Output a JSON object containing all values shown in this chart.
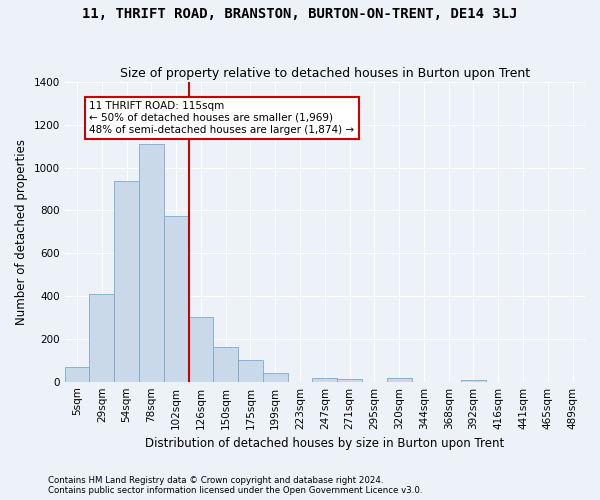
{
  "title": "11, THRIFT ROAD, BRANSTON, BURTON-ON-TRENT, DE14 3LJ",
  "subtitle": "Size of property relative to detached houses in Burton upon Trent",
  "xlabel": "Distribution of detached houses by size in Burton upon Trent",
  "ylabel": "Number of detached properties",
  "footnote1": "Contains HM Land Registry data © Crown copyright and database right 2024.",
  "footnote2": "Contains public sector information licensed under the Open Government Licence v3.0.",
  "annotation_line1": "11 THRIFT ROAD: 115sqm",
  "annotation_line2": "← 50% of detached houses are smaller (1,969)",
  "annotation_line3": "48% of semi-detached houses are larger (1,874) →",
  "bar_color": "#c9d9ea",
  "bar_edge_color": "#7aaaca",
  "vline_color": "#cc0000",
  "vline_position": 4.5,
  "annotation_box_edge": "#cc0000",
  "categories": [
    "5sqm",
    "29sqm",
    "54sqm",
    "78sqm",
    "102sqm",
    "126sqm",
    "150sqm",
    "175sqm",
    "199sqm",
    "223sqm",
    "247sqm",
    "271sqm",
    "295sqm",
    "320sqm",
    "344sqm",
    "368sqm",
    "392sqm",
    "416sqm",
    "441sqm",
    "465sqm",
    "489sqm"
  ],
  "values": [
    70,
    410,
    940,
    1110,
    775,
    300,
    160,
    100,
    42,
    0,
    18,
    12,
    0,
    15,
    0,
    0,
    10,
    0,
    0,
    0,
    0
  ],
  "ylim": [
    0,
    1400
  ],
  "yticks": [
    0,
    200,
    400,
    600,
    800,
    1000,
    1200,
    1400
  ],
  "background_color": "#edf2f8",
  "plot_background": "#edf2f8",
  "grid_color": "#ffffff",
  "title_fontsize": 10,
  "subtitle_fontsize": 9,
  "xlabel_fontsize": 8.5,
  "ylabel_fontsize": 8.5,
  "tick_fontsize": 7.5,
  "annotation_fontsize": 7.5
}
